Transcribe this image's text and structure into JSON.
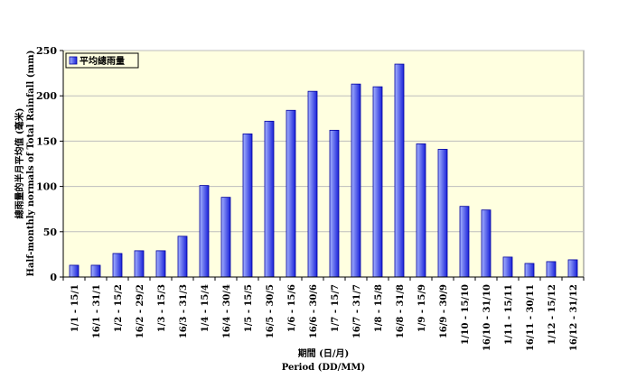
{
  "chart_data": {
    "type": "bar",
    "categories": [
      "1/1 - 15/1",
      "16/1 - 31/1",
      "1/2 - 15/2",
      "16/2 - 29/2",
      "1/3 - 15/3",
      "16/3 - 31/3",
      "1/4 - 15/4",
      "16/4 - 30/4",
      "1/5 - 15/5",
      "16/5 - 30/5",
      "1/6 - 15/6",
      "16/6 - 30/6",
      "1/7 - 15/7",
      "16/7 - 31/7",
      "1/8 - 15/8",
      "16/8 - 31/8",
      "1/9 - 15/9",
      "16/9 - 30/9",
      "1/10 - 15/10",
      "16/10 - 31/10",
      "1/11 - 15/11",
      "16/11 - 30/11",
      "1/12 - 15/12",
      "16/12 - 31/12"
    ],
    "series": [
      {
        "name": "平均總雨量",
        "values": [
          13,
          13,
          26,
          29,
          29,
          45,
          101,
          88,
          158,
          172,
          184,
          205,
          162,
          213,
          210,
          235,
          147,
          141,
          78,
          74,
          22,
          15,
          17,
          19
        ]
      }
    ],
    "ylabel_zh": "總雨量的半月平均值 (毫米)",
    "ylabel_en": "Half-monthly  normals of Total Rainfall (mm)",
    "xlabel_zh": "期間 (日/月)",
    "xlabel_en": "Period (DD/MM)",
    "ylim": [
      0,
      250
    ],
    "yticks": [
      0,
      50,
      100,
      150,
      200,
      250
    ],
    "legend_position": "top-left",
    "colors": {
      "plot_bg": "#ffffe0",
      "bar_light": "#a6b4ff",
      "bar_dark": "#1a22d8",
      "bar_edge": "#0000a0",
      "legend_bg": "#ffffe0"
    }
  }
}
